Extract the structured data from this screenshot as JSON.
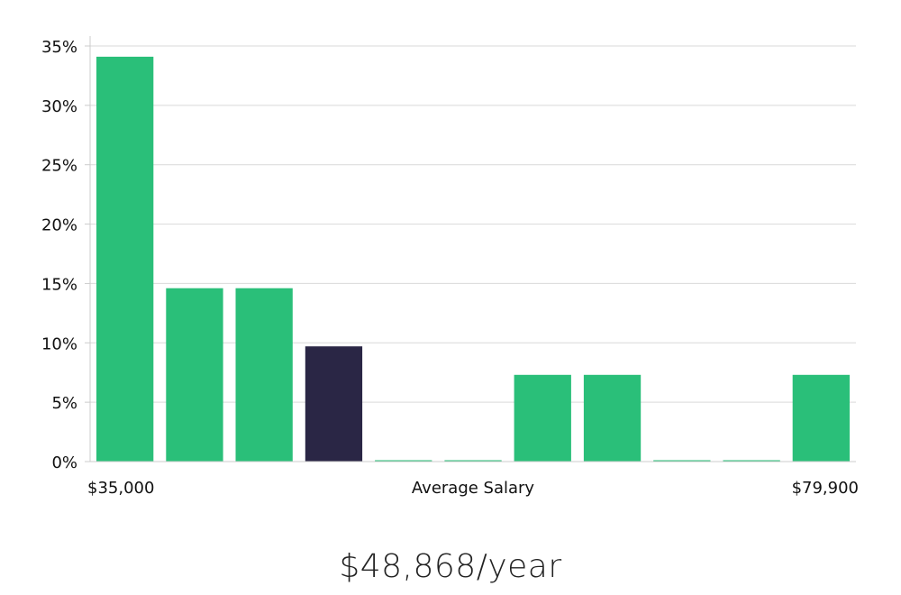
{
  "chart_data": {
    "type": "bar",
    "categories": [
      "",
      "",
      "",
      "",
      "",
      "",
      "",
      "",
      "",
      "",
      ""
    ],
    "values": [
      34.1,
      14.6,
      14.6,
      9.7,
      0,
      0,
      7.3,
      7.3,
      0,
      0,
      7.3
    ],
    "highlight_index": 3,
    "bar_color": "#2abf79",
    "highlight_color": "#2a2645",
    "grid_color": "#d9d9d9",
    "axis_color": "#cccccc",
    "ylim": [
      0,
      35
    ],
    "yticks": [
      0,
      5,
      10,
      15,
      20,
      25,
      30,
      35
    ],
    "ytick_labels": [
      "0%",
      "5%",
      "10%",
      "15%",
      "20%",
      "25%",
      "30%",
      "35%"
    ],
    "grid": true,
    "xlabel": "Average Salary",
    "x_min_label": "$35,000",
    "x_max_label": "$79,900"
  },
  "salary": {
    "value": "$48,868/year"
  }
}
